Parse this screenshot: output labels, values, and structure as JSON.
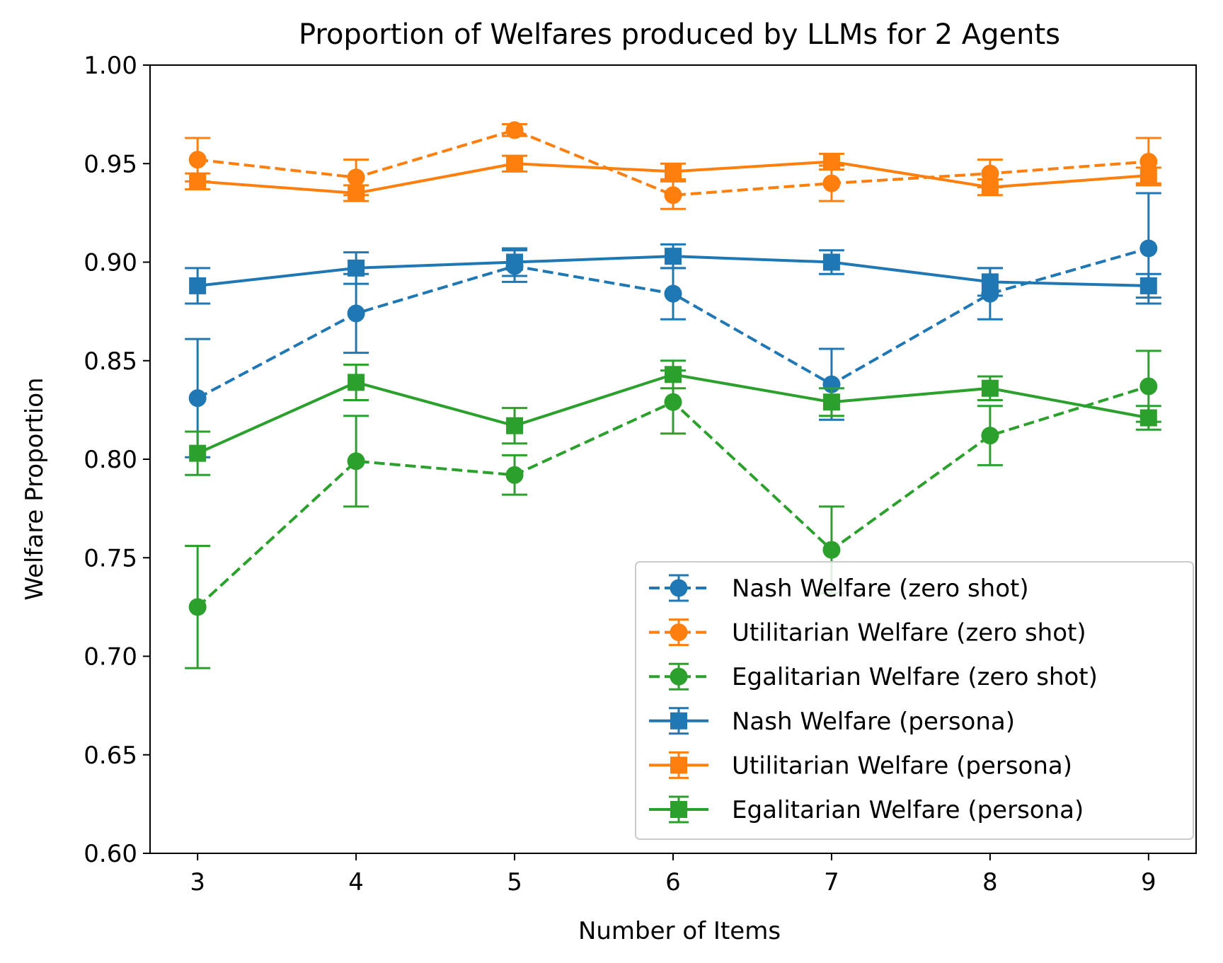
{
  "chart_data": {
    "type": "line",
    "title": "Proportion of Welfares produced by LLMs for 2 Agents",
    "xlabel": "Number of Items",
    "ylabel": "Welfare Proportion",
    "x": [
      3,
      4,
      5,
      6,
      7,
      8,
      9
    ],
    "xticks": [
      "3",
      "4",
      "5",
      "6",
      "7",
      "8",
      "9"
    ],
    "yticks": [
      "0.60",
      "0.65",
      "0.70",
      "0.75",
      "0.80",
      "0.85",
      "0.90",
      "0.95",
      "1.00"
    ],
    "xlim": [
      2.7,
      9.3
    ],
    "ylim": [
      0.6,
      1.0
    ],
    "grid": false,
    "legend_position": "lower-right",
    "series": [
      {
        "name": "Nash Welfare (zero shot)",
        "color": "#1f77b4",
        "linestyle": "dashed",
        "marker": "circle",
        "values": [
          0.831,
          0.874,
          0.898,
          0.884,
          0.838,
          0.884,
          0.907
        ],
        "errors": [
          0.03,
          0.02,
          0.008,
          0.013,
          0.018,
          0.013,
          0.028
        ]
      },
      {
        "name": "Utilitarian Welfare (zero shot)",
        "color": "#ff7f0e",
        "linestyle": "dashed",
        "marker": "circle",
        "values": [
          0.952,
          0.943,
          0.967,
          0.934,
          0.94,
          0.945,
          0.951
        ],
        "errors": [
          0.011,
          0.009,
          0.003,
          0.007,
          0.009,
          0.007,
          0.012
        ]
      },
      {
        "name": "Egalitarian Welfare (zero shot)",
        "color": "#2ca02c",
        "linestyle": "dashed",
        "marker": "circle",
        "values": [
          0.725,
          0.799,
          0.792,
          0.829,
          0.754,
          0.812,
          0.837
        ],
        "errors": [
          0.031,
          0.023,
          0.01,
          0.016,
          0.022,
          0.015,
          0.018
        ]
      },
      {
        "name": "Nash Welfare (persona)",
        "color": "#1f77b4",
        "linestyle": "solid",
        "marker": "square",
        "values": [
          0.888,
          0.897,
          0.9,
          0.903,
          0.9,
          0.89,
          0.888
        ],
        "errors": [
          0.009,
          0.008,
          0.007,
          0.006,
          0.006,
          0.007,
          0.006
        ]
      },
      {
        "name": "Utilitarian Welfare (persona)",
        "color": "#ff7f0e",
        "linestyle": "solid",
        "marker": "square",
        "values": [
          0.941,
          0.935,
          0.95,
          0.946,
          0.951,
          0.938,
          0.944
        ],
        "errors": [
          0.004,
          0.004,
          0.004,
          0.004,
          0.004,
          0.004,
          0.004
        ]
      },
      {
        "name": "Egalitarian Welfare (persona)",
        "color": "#2ca02c",
        "linestyle": "solid",
        "marker": "square",
        "values": [
          0.803,
          0.839,
          0.817,
          0.843,
          0.829,
          0.836,
          0.821
        ],
        "errors": [
          0.011,
          0.009,
          0.009,
          0.007,
          0.007,
          0.006,
          0.006
        ]
      }
    ]
  }
}
